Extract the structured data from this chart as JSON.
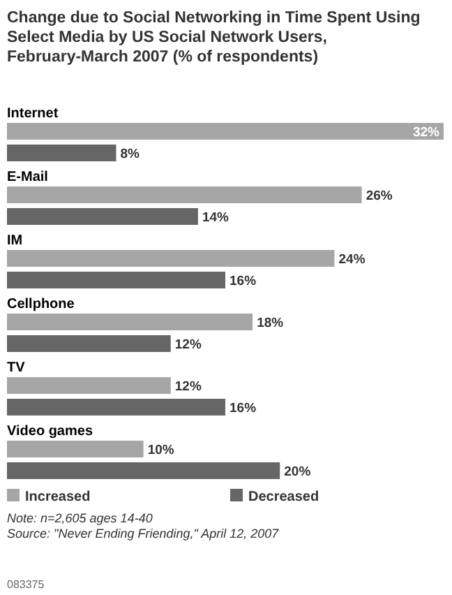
{
  "chart_data": {
    "type": "bar",
    "orientation": "horizontal",
    "title": "Change due to Social Networking in Time Spent Using Select Media by US Social Network Users, February-March 2007 (% of respondents)",
    "categories": [
      "Internet",
      "E-Mail",
      "IM",
      "Cellphone",
      "TV",
      "Video games"
    ],
    "series": [
      {
        "name": "Increased",
        "color": "#a6a6a6",
        "values": [
          32,
          26,
          24,
          18,
          12,
          10
        ],
        "value_labels": [
          "32%",
          "26%",
          "24%",
          "18%",
          "12%",
          "10%"
        ]
      },
      {
        "name": "Decreased",
        "color": "#666666",
        "values": [
          8,
          14,
          16,
          12,
          16,
          20
        ],
        "value_labels": [
          "8%",
          "14%",
          "16%",
          "12%",
          "16%",
          "20%"
        ]
      }
    ],
    "xlim": [
      0,
      32
    ],
    "legend": "bottom",
    "annotations": [
      "Note: n=2,605 ages 14-40",
      "Source: \"Never Ending Friending,\" April 12, 2007",
      "083375"
    ]
  }
}
